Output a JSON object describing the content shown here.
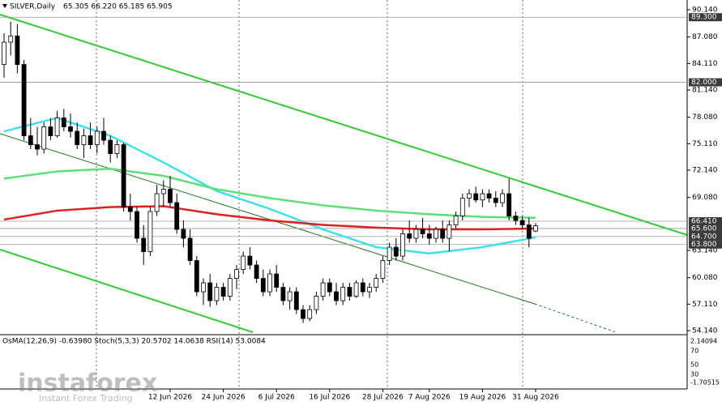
{
  "header": {
    "symbol": "SILVER,Daily",
    "ohlc": "65.305 66.220 65.185 65.905"
  },
  "chart_data": {
    "type": "candlestick",
    "categories": [
      null,
      null,
      null,
      null,
      null,
      null,
      null,
      null,
      null,
      null,
      null,
      null,
      null,
      null,
      null,
      null,
      null,
      null,
      null,
      null,
      null,
      null,
      null,
      null,
      null,
      "12 Jun 2026",
      null,
      null,
      null,
      null,
      null,
      null,
      null,
      "24 Jun 2026",
      null,
      null,
      null,
      null,
      null,
      null,
      null,
      "6 Jul 2026",
      null,
      null,
      null,
      null,
      null,
      null,
      null,
      "16 Jul 2026",
      null,
      null,
      null,
      null,
      null,
      null,
      null,
      "28 Jul 2026",
      null,
      null,
      null,
      null,
      null,
      null,
      "7 Aug 2026",
      null,
      null,
      null,
      null,
      null,
      null,
      null,
      "19 Aug 2026",
      null,
      null,
      null,
      null,
      null,
      null,
      null,
      "31 Aug 2026"
    ],
    "open": [
      84.0,
      86.5,
      87.2,
      84.0,
      76.0,
      75.0,
      74.5,
      77.0,
      76.0,
      78.0,
      77.0,
      76.5,
      75.0,
      76.0,
      75.0,
      76.5,
      75.5,
      74.0,
      75.0,
      68.0,
      67.5,
      64.5,
      63.0,
      67.5,
      69.5,
      70.0,
      68.5,
      65.5,
      64.5,
      62.0,
      58.5,
      59.5,
      57.5,
      59.0,
      58.0,
      60.0,
      61.0,
      62.5,
      61.5,
      60.0,
      58.5,
      60.5,
      59.0,
      57.5,
      58.5,
      56.5,
      55.5,
      56.5,
      58.0,
      59.5,
      58.5,
      57.5,
      59.0,
      58.0,
      59.5,
      58.5,
      59.0,
      60.0,
      62.0,
      63.5,
      62.5,
      65.0,
      64.5,
      65.5,
      65.0,
      64.5,
      65.5,
      64.5,
      66.0,
      67.0,
      69.0,
      69.5,
      68.8,
      69.5,
      69.0,
      68.5,
      69.5,
      67.0,
      66.5,
      66.0,
      65.305
    ],
    "high": [
      87.5,
      88.8,
      88.5,
      84.5,
      78.0,
      77.0,
      77.5,
      78.0,
      78.8,
      79.0,
      78.5,
      77.5,
      76.8,
      77.5,
      77.0,
      78.0,
      76.0,
      75.5,
      75.2,
      69.5,
      68.0,
      66.0,
      68.0,
      70.5,
      71.0,
      71.5,
      69.5,
      66.5,
      65.5,
      62.5,
      60.0,
      60.5,
      59.5,
      59.5,
      60.5,
      61.5,
      63.0,
      63.5,
      62.0,
      61.0,
      61.0,
      61.5,
      59.5,
      59.0,
      59.0,
      57.0,
      57.0,
      58.5,
      60.0,
      60.0,
      59.5,
      59.5,
      59.5,
      59.8,
      60.0,
      59.5,
      60.5,
      62.5,
      64.0,
      64.5,
      65.5,
      66.5,
      66.0,
      66.8,
      66.0,
      65.8,
      66.5,
      66.5,
      67.5,
      69.5,
      70.0,
      70.3,
      70.0,
      70.0,
      69.8,
      70.0,
      71.2,
      67.5,
      67.0,
      66.8,
      66.22
    ],
    "low": [
      82.5,
      85.0,
      83.0,
      75.5,
      74.5,
      73.8,
      74.0,
      75.5,
      75.8,
      76.5,
      75.8,
      74.5,
      73.5,
      74.5,
      74.0,
      75.0,
      73.0,
      73.5,
      67.5,
      66.5,
      64.0,
      61.5,
      62.5,
      67.0,
      68.0,
      68.0,
      65.0,
      63.5,
      61.5,
      58.0,
      57.0,
      56.8,
      57.0,
      57.5,
      57.5,
      58.8,
      60.5,
      61.0,
      59.5,
      58.0,
      58.0,
      58.5,
      57.0,
      56.5,
      56.0,
      55.0,
      55.2,
      56.0,
      57.5,
      58.0,
      57.0,
      57.0,
      57.5,
      57.8,
      58.0,
      57.8,
      58.5,
      59.5,
      61.5,
      62.0,
      62.0,
      64.0,
      64.0,
      64.5,
      63.8,
      64.0,
      64.0,
      63.0,
      65.5,
      66.5,
      68.0,
      68.5,
      68.0,
      68.5,
      68.0,
      68.0,
      66.5,
      66.0,
      65.5,
      63.5,
      65.185
    ],
    "close": [
      86.5,
      87.2,
      84.0,
      76.0,
      75.0,
      74.5,
      77.0,
      76.0,
      78.0,
      77.0,
      76.5,
      75.0,
      76.0,
      75.0,
      76.5,
      75.5,
      74.0,
      75.0,
      68.0,
      67.5,
      64.5,
      63.0,
      67.5,
      69.5,
      70.0,
      68.5,
      65.5,
      64.5,
      62.0,
      58.5,
      59.5,
      57.5,
      59.0,
      58.0,
      60.0,
      61.0,
      62.5,
      61.5,
      60.0,
      58.5,
      60.5,
      59.0,
      57.5,
      58.5,
      56.5,
      55.5,
      56.5,
      58.0,
      59.5,
      58.5,
      57.5,
      59.0,
      58.0,
      59.5,
      58.5,
      59.0,
      60.0,
      62.0,
      63.5,
      62.5,
      65.0,
      64.5,
      65.5,
      65.0,
      64.5,
      65.5,
      64.5,
      66.0,
      67.0,
      69.0,
      69.5,
      68.8,
      69.5,
      69.0,
      68.5,
      69.5,
      67.0,
      66.5,
      66.0,
      64.5,
      65.905
    ],
    "up_color": "#ffffff",
    "down_color": "#000000",
    "overlays": [
      {
        "color": "#3fe0ee",
        "x": [
          0,
          8,
          16,
          24,
          32,
          40,
          48,
          56,
          64,
          72,
          80
        ],
        "values": [
          76.5,
          78.0,
          76.0,
          73.0,
          69.8,
          67.8,
          65.5,
          63.5,
          62.8,
          63.5,
          64.6
        ]
      },
      {
        "color": "#5ce07a",
        "x": [
          0,
          8,
          16,
          24,
          32,
          40,
          48,
          56,
          64,
          72,
          80
        ],
        "values": [
          71.2,
          72.0,
          72.3,
          71.5,
          70.0,
          69.0,
          68.2,
          67.6,
          67.2,
          66.9,
          66.8
        ]
      },
      {
        "color": "#e02020",
        "x": [
          0,
          8,
          16,
          24,
          32,
          40,
          48,
          56,
          64,
          72,
          80
        ],
        "values": [
          66.6,
          67.6,
          68.0,
          68.1,
          67.2,
          66.5,
          66.0,
          65.7,
          65.5,
          65.5,
          65.6
        ]
      }
    ],
    "ylim": [
      54.14,
      90.14
    ],
    "yticks": [
      {
        "value": 90.14,
        "label": "90.140"
      },
      {
        "value": 87.08,
        "label": "87.080"
      },
      {
        "value": 84.11,
        "label": "84.110"
      },
      {
        "value": 81.14,
        "label": "81.140"
      },
      {
        "value": 78.08,
        "label": "78.080"
      },
      {
        "value": 75.11,
        "label": "75.110"
      },
      {
        "value": 72.14,
        "label": "72.140"
      },
      {
        "value": 69.08,
        "label": "69.080"
      },
      {
        "value": 63.14,
        "label": "63.140"
      },
      {
        "value": 60.08,
        "label": "60.080"
      },
      {
        "value": 57.11,
        "label": "57.110"
      },
      {
        "value": 54.14,
        "label": "54.140"
      }
    ],
    "levels": [
      {
        "value": 89.3,
        "label": "89.300"
      },
      {
        "value": 82.0,
        "label": "82.000"
      },
      {
        "value": 66.41,
        "label": "66.410"
      },
      {
        "value": 65.6,
        "label": "65.600"
      },
      {
        "value": 64.7,
        "label": "64.700"
      },
      {
        "value": 63.8,
        "label": "63.800"
      }
    ]
  },
  "indicator": {
    "title": "OsMA(12,26,9) -0.63980  Stoch(5,3,3) 20.5702 14.0638  RSI(14) 53.0084",
    "axis_labels": [
      "2.14094",
      "70",
      "50",
      "30",
      "-1.70515"
    ]
  },
  "watermark": {
    "brand": "instaforex",
    "tagline": "Instant Forex Trading"
  }
}
